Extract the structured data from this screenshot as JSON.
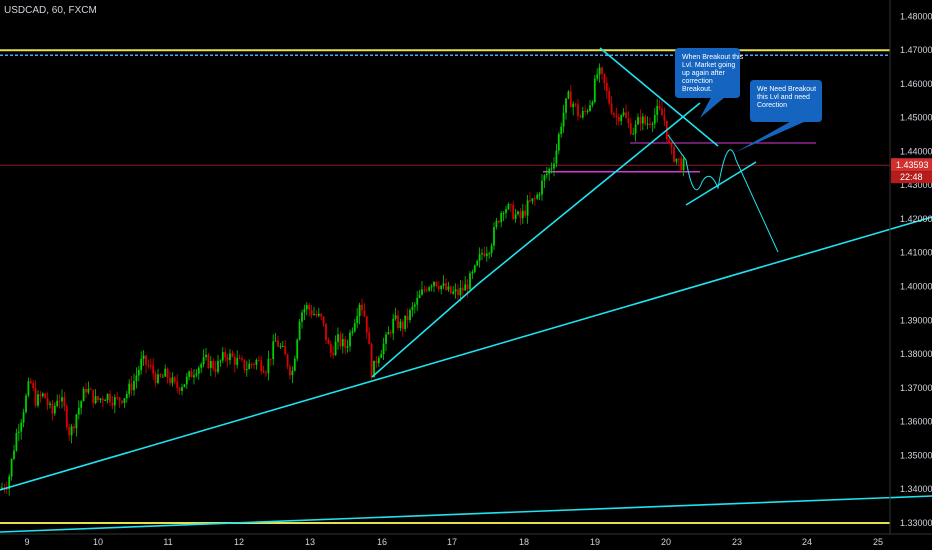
{
  "header": {
    "title": "USDCAD, 60, FXCM"
  },
  "colors": {
    "background": "#000000",
    "candle_up": "#26a69a",
    "candle_down": "#ef5350",
    "up_color": "#00d000",
    "down_color": "#e00000",
    "trendline": "#1ee3f0",
    "horizontal_yellow": "#e5e14a",
    "callout_bg": "#1565c0",
    "price_tag": "#d32f2f"
  },
  "chart_data": {
    "type": "candlestick",
    "title": "USDCAD, 60, FXCM",
    "ylim": [
      1.3295,
      1.4825
    ],
    "y_ticks": [
      "1.48000",
      "1.47000",
      "1.46000",
      "1.45000",
      "1.44000",
      "1.43000",
      "1.42000",
      "1.41000",
      "1.40000",
      "1.39000",
      "1.38000",
      "1.37000",
      "1.36000",
      "1.35000",
      "1.34000",
      "1.33000"
    ],
    "x_ticks": [
      "9",
      "10",
      "11",
      "12",
      "13",
      "16",
      "17",
      "18",
      "19",
      "20",
      "23",
      "24",
      "25"
    ],
    "current_price": "1.43593",
    "countdown": "22:48",
    "price_path": [
      [
        0,
        1.34
      ],
      [
        8,
        1.342
      ],
      [
        16,
        1.356
      ],
      [
        22,
        1.362
      ],
      [
        30,
        1.372
      ],
      [
        36,
        1.366
      ],
      [
        44,
        1.368
      ],
      [
        52,
        1.362
      ],
      [
        58,
        1.368
      ],
      [
        64,
        1.364
      ],
      [
        70,
        1.356
      ],
      [
        76,
        1.362
      ],
      [
        86,
        1.37
      ],
      [
        96,
        1.366
      ],
      [
        106,
        1.368
      ],
      [
        116,
        1.366
      ],
      [
        126,
        1.368
      ],
      [
        134,
        1.372
      ],
      [
        142,
        1.378
      ],
      [
        150,
        1.376
      ],
      [
        158,
        1.372
      ],
      [
        166,
        1.374
      ],
      [
        176,
        1.37
      ],
      [
        186,
        1.372
      ],
      [
        196,
        1.376
      ],
      [
        206,
        1.378
      ],
      [
        216,
        1.376
      ],
      [
        226,
        1.38
      ],
      [
        236,
        1.378
      ],
      [
        246,
        1.376
      ],
      [
        256,
        1.378
      ],
      [
        266,
        1.376
      ],
      [
        276,
        1.384
      ],
      [
        284,
        1.38
      ],
      [
        292,
        1.374
      ],
      [
        300,
        1.392
      ],
      [
        306,
        1.394
      ],
      [
        314,
        1.392
      ],
      [
        322,
        1.39
      ],
      [
        330,
        1.38
      ],
      [
        338,
        1.384
      ],
      [
        346,
        1.382
      ],
      [
        354,
        1.39
      ],
      [
        360,
        1.396
      ],
      [
        366,
        1.39
      ],
      [
        372,
        1.374
      ],
      [
        378,
        1.38
      ],
      [
        386,
        1.384
      ],
      [
        394,
        1.39
      ],
      [
        402,
        1.388
      ],
      [
        410,
        1.392
      ],
      [
        418,
        1.396
      ],
      [
        426,
        1.4
      ],
      [
        434,
        1.402
      ],
      [
        442,
        1.4
      ],
      [
        450,
        1.398
      ],
      [
        458,
        1.398
      ],
      [
        466,
        1.4
      ],
      [
        474,
        1.404
      ],
      [
        482,
        1.41
      ],
      [
        490,
        1.412
      ],
      [
        498,
        1.42
      ],
      [
        504,
        1.424
      ],
      [
        512,
        1.422
      ],
      [
        520,
        1.42
      ],
      [
        528,
        1.424
      ],
      [
        536,
        1.426
      ],
      [
        544,
        1.432
      ],
      [
        552,
        1.436
      ],
      [
        556,
        1.44
      ],
      [
        562,
        1.45
      ],
      [
        568,
        1.456
      ],
      [
        574,
        1.454
      ],
      [
        580,
        1.45
      ],
      [
        586,
        1.452
      ],
      [
        592,
        1.456
      ],
      [
        598,
        1.464
      ],
      [
        604,
        1.46
      ],
      [
        610,
        1.454
      ],
      [
        616,
        1.45
      ],
      [
        622,
        1.452
      ],
      [
        628,
        1.448
      ],
      [
        634,
        1.446
      ],
      [
        640,
        1.45
      ],
      [
        646,
        1.448
      ],
      [
        652,
        1.45
      ],
      [
        658,
        1.452
      ],
      [
        664,
        1.45
      ],
      [
        670,
        1.44
      ],
      [
        676,
        1.438
      ],
      [
        682,
        1.436
      ]
    ],
    "horizontal_lines": [
      {
        "price": 1.47,
        "color": "yellow"
      },
      {
        "price": 1.4685,
        "color": "blue"
      },
      {
        "price": 1.4425,
        "color": "magenta"
      },
      {
        "price": 1.434,
        "color": "magenta"
      },
      {
        "price": 1.43593,
        "color": "red"
      }
    ],
    "callouts": [
      "When Breakout this Lvl. Market going up again after correction Breakout.",
      "We Need Breakout this Lvl and need Corection"
    ]
  }
}
